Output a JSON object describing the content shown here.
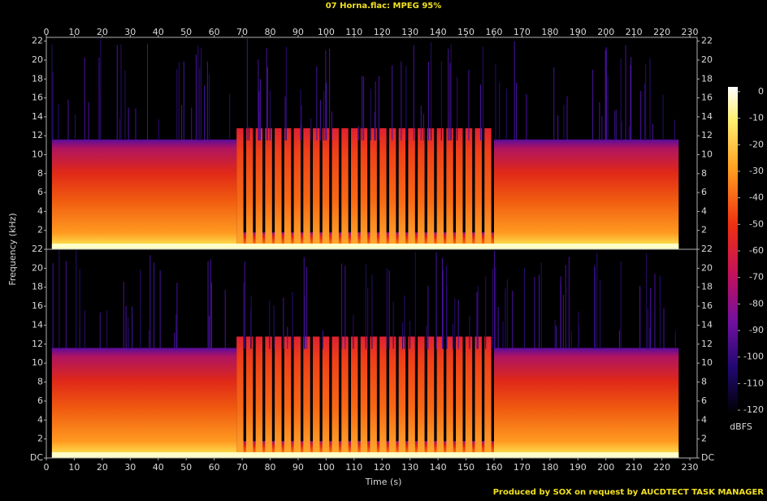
{
  "chart_data": {
    "type": "spectrogram",
    "title": "07 Horna.flac: MPEG 95%",
    "xlabel": "Time (s)",
    "ylabel": "Frequency (kHz)",
    "xlim": [
      0,
      232.6
    ],
    "xticks": [
      0,
      10,
      20,
      30,
      40,
      50,
      60,
      70,
      80,
      90,
      100,
      110,
      120,
      130,
      140,
      150,
      160,
      170,
      180,
      190,
      200,
      210,
      220,
      230
    ],
    "channels": [
      {
        "ylim": [
          0,
          22.4
        ],
        "yticks": [
          2,
          4,
          6,
          8,
          10,
          12,
          14,
          16,
          18,
          20,
          22
        ]
      },
      {
        "ylim": [
          0,
          22
        ],
        "yticks": [
          {
            "value": 0,
            "label": "DC"
          },
          2,
          4,
          6,
          8,
          10,
          12,
          14,
          16,
          18,
          20,
          22
        ]
      }
    ],
    "colorbar": {
      "label": "dBFS",
      "clim": [
        -121.5,
        1.8
      ],
      "ticks": [
        0,
        -10,
        -20,
        -30,
        -40,
        -50,
        -60,
        -70,
        -80,
        -90,
        -100,
        -110,
        -120
      ]
    }
  },
  "footer": "Produced by SOX on request by AUCDTECT TASK MANAGER"
}
